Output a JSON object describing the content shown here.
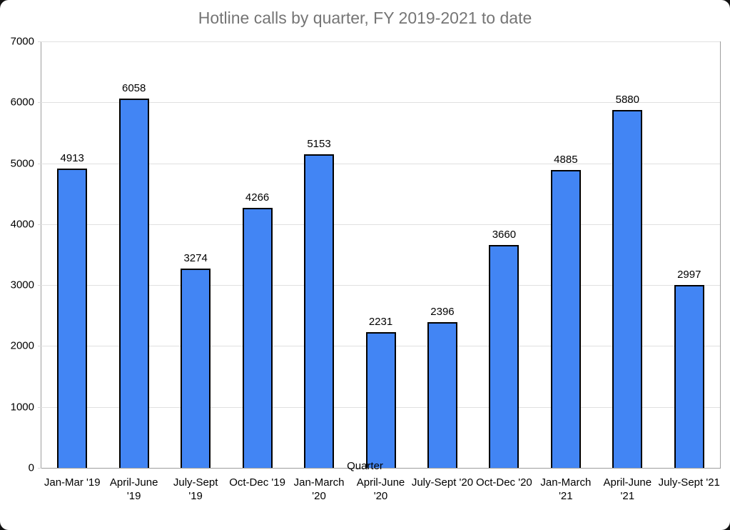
{
  "window": {
    "background": "#111111",
    "card_background": "#ffffff"
  },
  "chart_data": {
    "type": "bar",
    "title": "Hotline calls by quarter, FY 2019-2021 to date",
    "xlabel": "Quarter",
    "ylabel": "",
    "ylim": [
      0,
      7000
    ],
    "ytick_interval": 1000,
    "ytick_labels": [
      "0",
      "1000",
      "2000",
      "3000",
      "4000",
      "5000",
      "6000",
      "7000"
    ],
    "grid": true,
    "legend": "none",
    "categories": [
      "Jan-Mar '19",
      "April-June '19",
      "July-Sept '19",
      "Oct-Dec '19",
      "Jan-March '20",
      "April-June '20",
      "July-Sept '20",
      "Oct-Dec '20",
      "Jan-March '21",
      "April-June '21",
      "July-Sept '21"
    ],
    "category_label_lines": [
      [
        "Jan-Mar '19"
      ],
      [
        "April-June",
        "'19"
      ],
      [
        "July-Sept",
        "'19"
      ],
      [
        "Oct-Dec '19"
      ],
      [
        "Jan-March",
        "'20"
      ],
      [
        "April-June",
        "'20"
      ],
      [
        "July-Sept '20"
      ],
      [
        "Oct-Dec '20"
      ],
      [
        "Jan-March",
        "'21"
      ],
      [
        "April-June",
        "'21"
      ],
      [
        "July-Sept '21"
      ]
    ],
    "values": [
      4913,
      6058,
      3274,
      4266,
      5153,
      2231,
      2396,
      3660,
      4885,
      5880,
      2997
    ],
    "value_labels": [
      "4913",
      "6058",
      "3274",
      "4266",
      "5153",
      "2231",
      "2396",
      "3660",
      "4885",
      "5880",
      "2997"
    ],
    "colors": {
      "bar_fill": "#4285f4",
      "bar_border": "#000000",
      "gridline": "#e0e0e0",
      "axis_frame": "#9e9e9e",
      "title_text": "#757575",
      "label_text": "#000000"
    }
  }
}
